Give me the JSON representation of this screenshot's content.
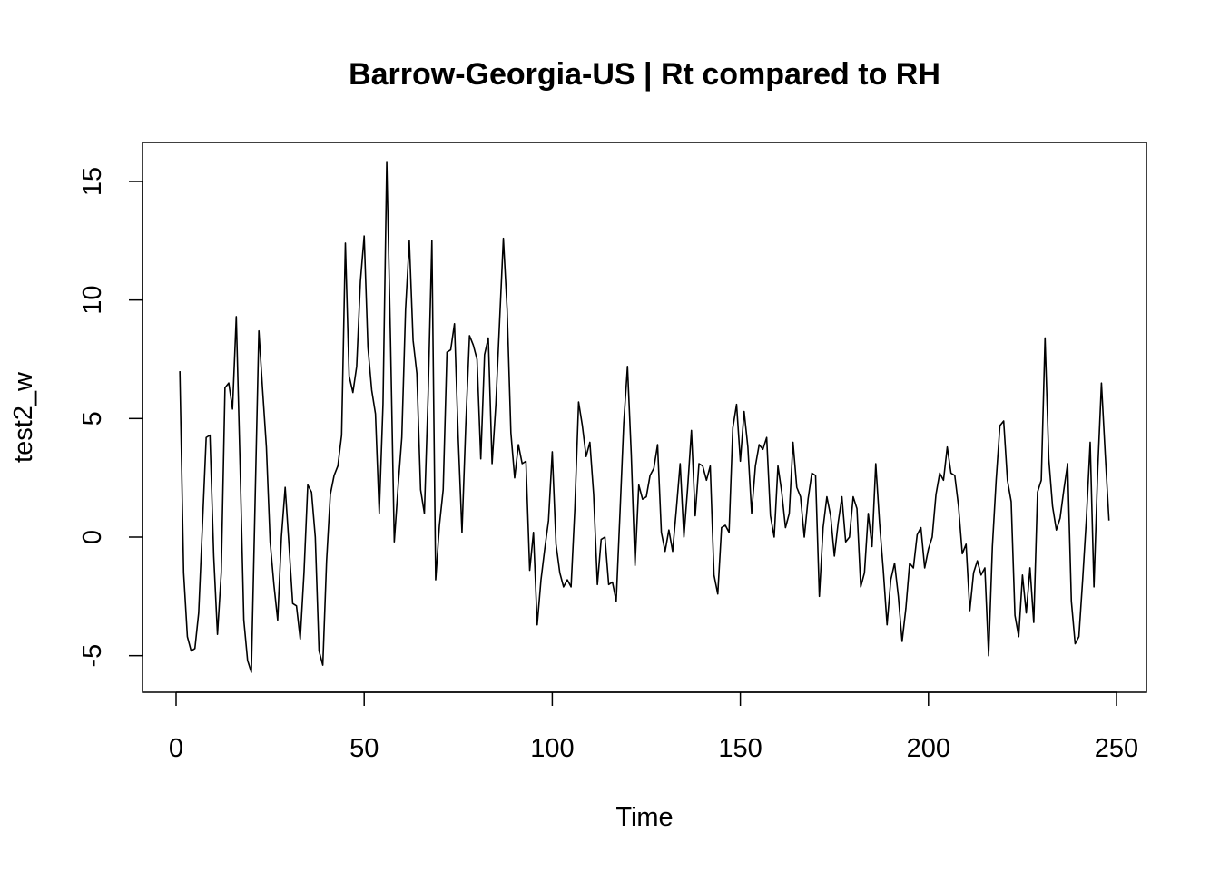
{
  "chart_data": {
    "type": "line",
    "title": "Barrow-Georgia-US | Rt compared to RH",
    "xlabel": "Time",
    "ylabel": "test2_w",
    "xlim": [
      0,
      250
    ],
    "ylim": [
      -5,
      15
    ],
    "x_ticks": [
      "0",
      "50",
      "100",
      "150",
      "200",
      "250"
    ],
    "y_ticks": [
      "-5",
      "0",
      "5",
      "10",
      "15"
    ],
    "grid": false,
    "x_start": 1,
    "series": [
      {
        "values": [
          7.0,
          -1.5,
          -4.2,
          -4.8,
          -4.7,
          -3.2,
          0.5,
          4.2,
          4.3,
          -0.8,
          -4.1,
          -1.5,
          6.3,
          6.5,
          5.4,
          9.3,
          3.1,
          -3.5,
          -5.2,
          -5.7,
          1.5,
          8.7,
          6.2,
          3.8,
          -0.2,
          -2.0,
          -3.5,
          0.0,
          2.1,
          -0.3,
          -2.8,
          -2.9,
          -4.3,
          -1.5,
          2.2,
          1.9,
          0.0,
          -4.8,
          -5.4,
          -1.0,
          1.8,
          2.6,
          3.0,
          4.3,
          12.4,
          6.8,
          6.1,
          7.2,
          10.8,
          12.7,
          8.0,
          6.2,
          5.2,
          1.0,
          5.6,
          15.8,
          8.3,
          -0.2,
          2.1,
          4.2,
          9.6,
          12.5,
          8.3,
          6.9,
          2.0,
          1.0,
          6.0,
          12.5,
          -1.8,
          0.5,
          2.0,
          7.8,
          7.9,
          9.0,
          4.2,
          0.2,
          4.7,
          8.5,
          8.1,
          7.5,
          3.3,
          7.7,
          8.4,
          3.1,
          5.6,
          9.1,
          12.6,
          9.6,
          4.4,
          2.5,
          3.9,
          3.1,
          3.2,
          -1.4,
          0.2,
          -3.7,
          -1.8,
          -0.5,
          0.7,
          3.6,
          -0.3,
          -1.5,
          -2.1,
          -1.8,
          -2.1,
          1.2,
          5.7,
          4.7,
          3.4,
          4.0,
          1.8,
          -2.0,
          -0.1,
          0.0,
          -2.0,
          -1.9,
          -2.7,
          1.0,
          4.8,
          7.2,
          3.5,
          -1.2,
          2.2,
          1.6,
          1.7,
          2.6,
          2.9,
          3.9,
          0.2,
          -0.6,
          0.3,
          -0.6,
          1.2,
          3.1,
          0.0,
          2.1,
          4.5,
          0.9,
          3.1,
          3.0,
          2.4,
          3.0,
          -1.6,
          -2.4,
          0.4,
          0.5,
          0.2,
          4.6,
          5.6,
          3.2,
          5.3,
          3.8,
          1.0,
          3.0,
          3.9,
          3.7,
          4.2,
          0.9,
          0.0,
          3.0,
          1.9,
          0.4,
          1.0,
          4.0,
          2.1,
          1.7,
          0.0,
          1.6,
          2.7,
          2.6,
          -2.5,
          0.4,
          1.7,
          0.9,
          -0.8,
          0.6,
          1.7,
          -0.2,
          0.0,
          1.7,
          1.2,
          -2.1,
          -1.5,
          1.0,
          -0.4,
          3.1,
          0.6,
          -1.4,
          -3.7,
          -1.8,
          -1.1,
          -2.5,
          -4.4,
          -3.0,
          -1.1,
          -1.3,
          0.1,
          0.4,
          -1.3,
          -0.5,
          0.0,
          1.8,
          2.7,
          2.4,
          3.8,
          2.7,
          2.6,
          1.3,
          -0.7,
          -0.3,
          -3.1,
          -1.5,
          -1.0,
          -1.6,
          -1.3,
          -5.0,
          -0.4,
          2.4,
          4.7,
          4.9,
          2.4,
          1.5,
          -3.3,
          -4.2,
          -1.6,
          -3.2,
          -1.3,
          -3.6,
          1.9,
          2.4,
          8.4,
          3.3,
          1.3,
          0.3,
          0.8,
          2.0,
          3.1,
          -2.7,
          -4.5,
          -4.2,
          -1.8,
          0.8,
          4.0,
          -2.1,
          2.8,
          6.5,
          3.5,
          0.7
        ]
      }
    ]
  }
}
